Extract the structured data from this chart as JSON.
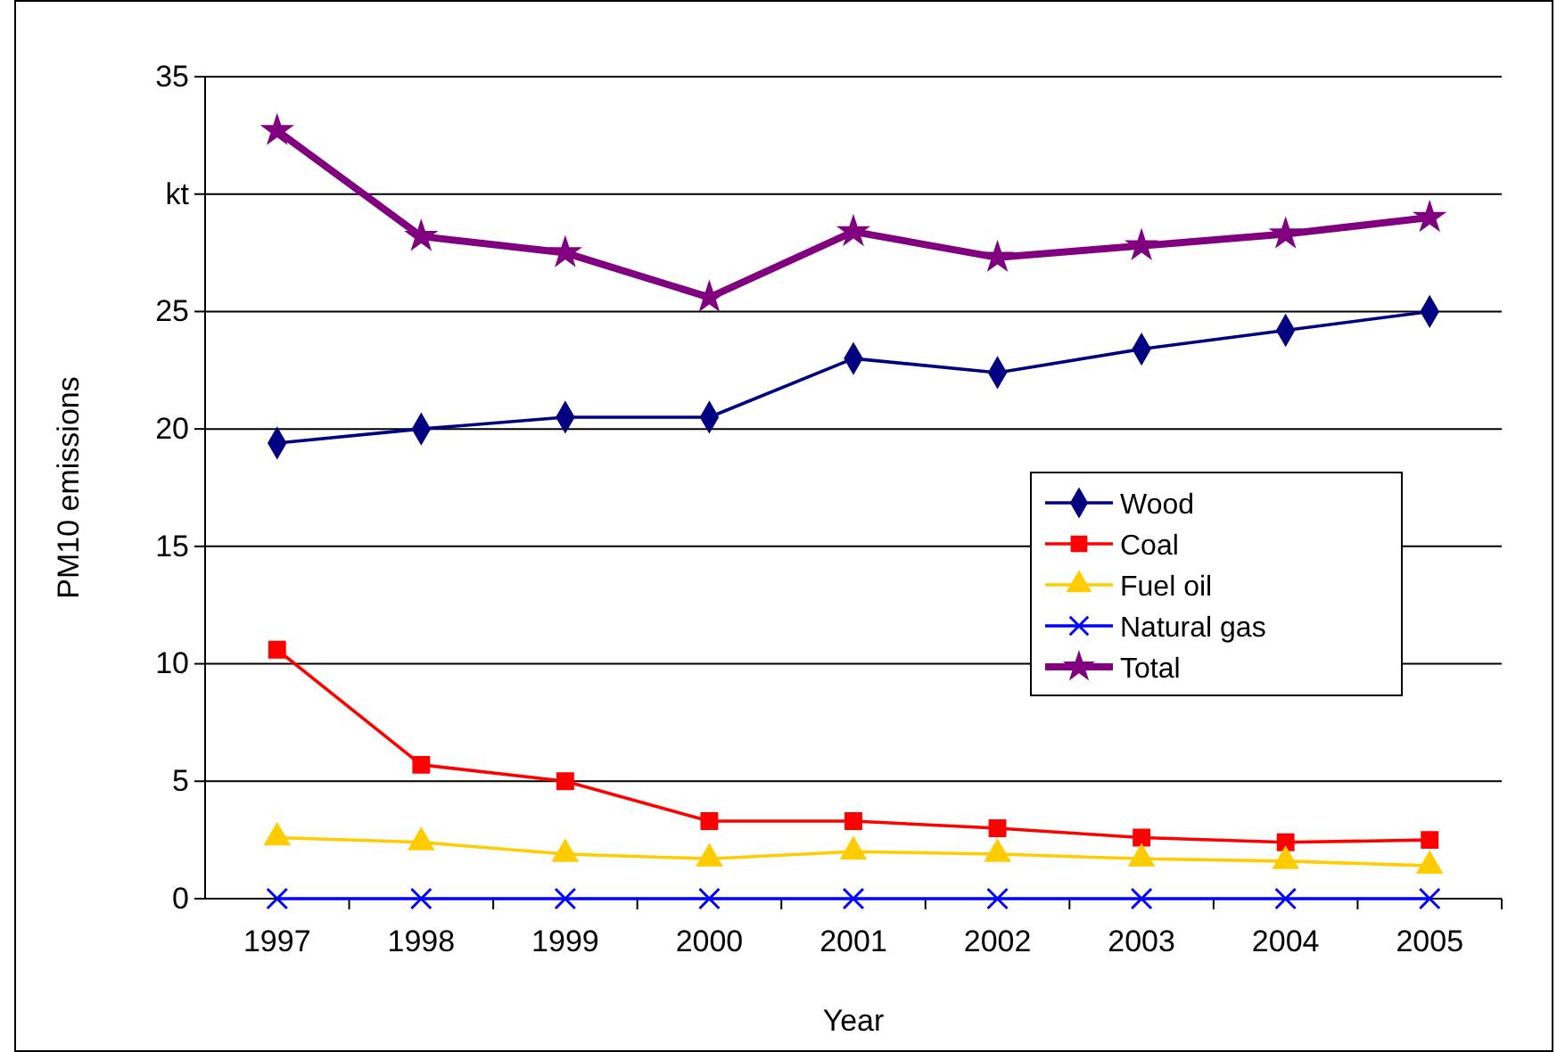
{
  "chart_data": {
    "type": "line",
    "xlabel": "Year",
    "ylabel": "PM10 emissions",
    "categories": [
      "1997",
      "1998",
      "1999",
      "2000",
      "2001",
      "2002",
      "2003",
      "2004",
      "2005"
    ],
    "ylim": [
      0,
      35
    ],
    "yticks": [
      0,
      5,
      10,
      15,
      20,
      25,
      {
        "value": 30,
        "label": "kt"
      },
      35
    ],
    "grid": "y",
    "legend": "right",
    "series": [
      {
        "name": "Wood",
        "color": "#000080",
        "marker": "diamond",
        "values": [
          19.4,
          20.0,
          20.5,
          20.5,
          23.0,
          22.4,
          23.4,
          24.2,
          25.0
        ]
      },
      {
        "name": "Coal",
        "color": "#ff0000",
        "marker": "square",
        "values": [
          10.6,
          5.7,
          5.0,
          3.3,
          3.3,
          3.0,
          2.6,
          2.4,
          2.5
        ]
      },
      {
        "name": "Fuel oil",
        "color": "#ffcc00",
        "marker": "triangle",
        "values": [
          2.6,
          2.4,
          1.9,
          1.7,
          2.0,
          1.9,
          1.7,
          1.6,
          1.4
        ]
      },
      {
        "name": "Natural gas",
        "color": "#0000ff",
        "marker": "cross",
        "values": [
          0,
          0,
          0,
          0,
          0,
          0,
          0,
          0,
          0
        ]
      },
      {
        "name": "Total",
        "color": "#800080",
        "marker": "star",
        "values": [
          32.7,
          28.2,
          27.5,
          25.6,
          28.4,
          27.3,
          27.8,
          28.3,
          29.0
        ]
      }
    ]
  }
}
